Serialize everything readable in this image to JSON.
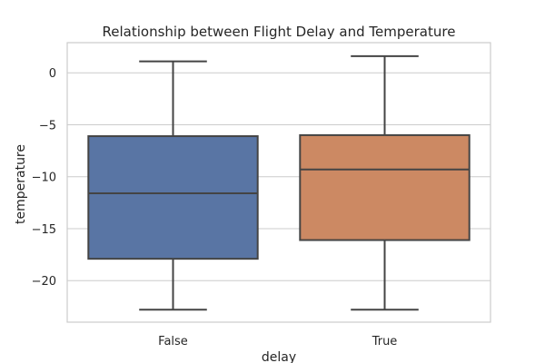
{
  "chart_data": {
    "type": "box",
    "title": "Relationship between Flight Delay and Temperature",
    "xlabel": "delay",
    "ylabel": "temperature",
    "categories": [
      "False",
      "True"
    ],
    "yticks": [
      0,
      -5,
      -10,
      -15,
      -20
    ],
    "ylim": [
      -24,
      2.9
    ],
    "grid": true,
    "boxes": [
      {
        "category": "False",
        "whisker_low": -22.8,
        "q1": -17.9,
        "median": -11.6,
        "q3": -6.1,
        "whisker_high": 1.1,
        "color": "#5975a4"
      },
      {
        "category": "True",
        "whisker_low": -22.8,
        "q1": -16.1,
        "median": -9.3,
        "q3": -6.0,
        "whisker_high": 1.6,
        "color": "#cc8963"
      }
    ]
  }
}
